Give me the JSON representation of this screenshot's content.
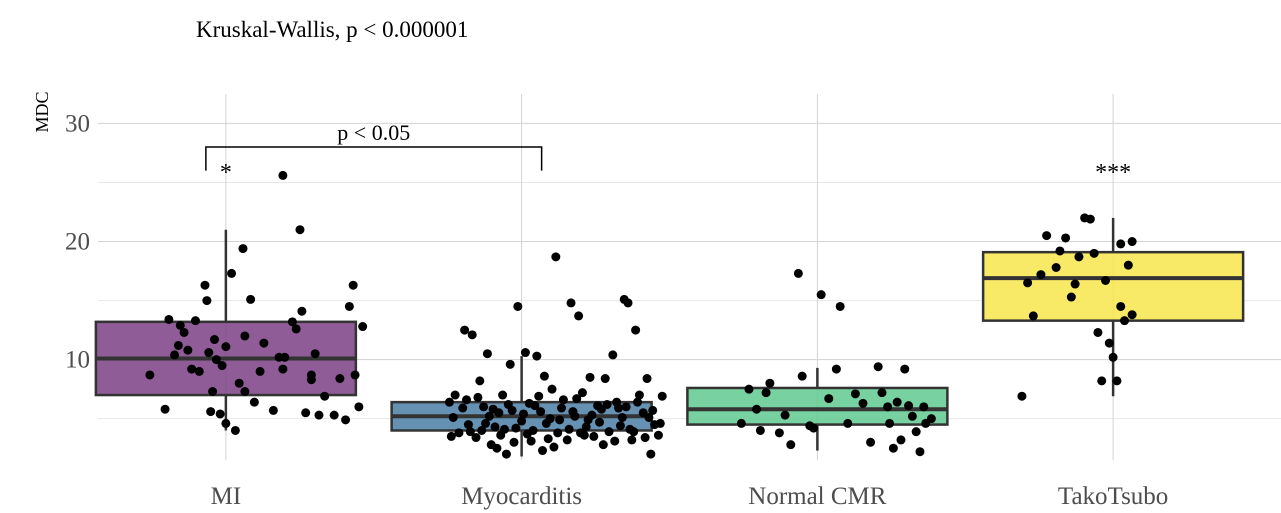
{
  "chart_data": {
    "type": "box",
    "title": "Kruskal-Wallis, p < 0.000001",
    "ylabel": "MDC",
    "xlabel": "",
    "ylim": [
      1.5,
      33
    ],
    "yticks": [
      10,
      20,
      30
    ],
    "grid": true,
    "legend": "none",
    "categories": [
      "MI",
      "Myocarditis",
      "Normal CMR",
      "TakoTsubo"
    ],
    "colors": [
      "#7b3f85",
      "#4a7ea6",
      "#5fc98f",
      "#f7e64b"
    ],
    "boxes": [
      {
        "q1": 7.0,
        "median": 10.1,
        "q3": 13.2,
        "whisker_low": 4.0,
        "whisker_high": 21.0,
        "significance": "*"
      },
      {
        "q1": 4.0,
        "median": 5.2,
        "q3": 6.4,
        "whisker_low": 1.8,
        "whisker_high": 10.3,
        "significance": ""
      },
      {
        "q1": 4.5,
        "median": 5.8,
        "q3": 7.6,
        "whisker_low": 2.3,
        "whisker_high": 9.3,
        "significance": ""
      },
      {
        "q1": 13.3,
        "median": 16.9,
        "q3": 19.1,
        "whisker_low": 6.9,
        "whisker_high": 22.0,
        "significance": "***"
      }
    ],
    "comparison": {
      "from": "MI",
      "to": "Myocarditis",
      "label": "p < 0.05"
    },
    "points": [
      [
        [
          -0.4,
          8.7
        ],
        [
          -0.32,
          5.8
        ],
        [
          -0.27,
          10.4
        ],
        [
          -0.25,
          11.2
        ],
        [
          -0.24,
          12.9
        ],
        [
          -0.2,
          10.8
        ],
        [
          -0.18,
          9.2
        ],
        [
          -0.16,
          13.3
        ],
        [
          -0.14,
          9.0
        ],
        [
          -0.11,
          16.3
        ],
        [
          -0.1,
          15.0
        ],
        [
          -0.09,
          10.6
        ],
        [
          -0.08,
          5.6
        ],
        [
          -0.07,
          7.3
        ],
        [
          -0.06,
          11.7
        ],
        [
          -0.05,
          10.0
        ],
        [
          -0.03,
          5.4
        ],
        [
          -0.02,
          9.5
        ],
        [
          0.0,
          4.6
        ],
        [
          0.03,
          17.3
        ],
        [
          0.05,
          4.0
        ],
        [
          0.07,
          8.0
        ],
        [
          0.09,
          19.4
        ],
        [
          0.1,
          12.0
        ],
        [
          0.1,
          7.3
        ],
        [
          0.13,
          15.1
        ],
        [
          0.15,
          6.4
        ],
        [
          0.18,
          9.0
        ],
        [
          0.2,
          11.4
        ],
        [
          0.25,
          5.7
        ],
        [
          0.28,
          10.2
        ],
        [
          0.31,
          10.2
        ],
        [
          0.35,
          13.2
        ],
        [
          0.37,
          12.6
        ],
        [
          0.39,
          21.0
        ],
        [
          0.4,
          14.1
        ],
        [
          0.42,
          5.5
        ],
        [
          0.45,
          8.7
        ],
        [
          0.47,
          10.5
        ],
        [
          0.49,
          5.3
        ],
        [
          0.52,
          6.9
        ],
        [
          0.57,
          5.3
        ],
        [
          0.6,
          8.4
        ],
        [
          0.63,
          4.9
        ],
        [
          0.65,
          14.5
        ],
        [
          0.67,
          16.3
        ],
        [
          0.68,
          8.7
        ],
        [
          0.7,
          6.0
        ],
        [
          0.72,
          12.8
        ],
        [
          -0.3,
          13.4
        ],
        [
          0.0,
          11.1
        ],
        [
          0.45,
          8.3
        ],
        [
          -0.22,
          12.3
        ],
        [
          0.3,
          9.2
        ],
        [
          0.3,
          25.6
        ]
      ],
      [
        [
          -0.38,
          6.4
        ],
        [
          -0.36,
          5.1
        ],
        [
          -0.33,
          3.8
        ],
        [
          -0.3,
          12.5
        ],
        [
          -0.28,
          4.5
        ],
        [
          -0.26,
          12.1
        ],
        [
          -0.24,
          3.4
        ],
        [
          -0.22,
          8.2
        ],
        [
          -0.2,
          6.0
        ],
        [
          -0.18,
          10.5
        ],
        [
          -0.16,
          2.8
        ],
        [
          -0.14,
          4.3
        ],
        [
          -0.12,
          5.5
        ],
        [
          -0.1,
          7.0
        ],
        [
          -0.08,
          2.0
        ],
        [
          -0.06,
          9.6
        ],
        [
          -0.04,
          3.0
        ],
        [
          -0.02,
          14.5
        ],
        [
          0.0,
          4.8
        ],
        [
          0.02,
          10.6
        ],
        [
          0.04,
          6.3
        ],
        [
          0.06,
          4.0
        ],
        [
          0.08,
          10.3
        ],
        [
          0.1,
          5.6
        ],
        [
          0.12,
          8.6
        ],
        [
          0.14,
          3.3
        ],
        [
          0.16,
          7.5
        ],
        [
          0.18,
          18.7
        ],
        [
          0.2,
          4.9
        ],
        [
          0.22,
          6.6
        ],
        [
          0.24,
          3.2
        ],
        [
          0.26,
          14.8
        ],
        [
          0.28,
          5.2
        ],
        [
          0.3,
          13.7
        ],
        [
          0.32,
          7.2
        ],
        [
          0.34,
          4.3
        ],
        [
          0.36,
          8.5
        ],
        [
          0.38,
          3.5
        ],
        [
          0.4,
          6.1
        ],
        [
          0.42,
          5.8
        ],
        [
          0.44,
          8.4
        ],
        [
          0.46,
          3.9
        ],
        [
          0.48,
          10.4
        ],
        [
          0.5,
          6.4
        ],
        [
          0.52,
          4.4
        ],
        [
          0.54,
          15.1
        ],
        [
          0.56,
          14.8
        ],
        [
          0.58,
          3.2
        ],
        [
          0.6,
          12.5
        ],
        [
          0.62,
          7.0
        ],
        [
          0.64,
          5.5
        ],
        [
          0.66,
          8.4
        ],
        [
          0.68,
          2.0
        ],
        [
          0.7,
          4.5
        ],
        [
          0.72,
          3.6
        ],
        [
          0.74,
          6.9
        ],
        [
          -0.35,
          7.0
        ],
        [
          -0.31,
          5.9
        ],
        [
          -0.27,
          3.9
        ],
        [
          -0.23,
          6.8
        ],
        [
          -0.19,
          4.6
        ],
        [
          -0.15,
          5.8
        ],
        [
          -0.11,
          3.6
        ],
        [
          -0.07,
          6.2
        ],
        [
          -0.03,
          4.2
        ],
        [
          0.01,
          5.4
        ],
        [
          0.05,
          3.1
        ],
        [
          0.09,
          6.9
        ],
        [
          0.13,
          4.6
        ],
        [
          0.17,
          2.6
        ],
        [
          0.21,
          5.9
        ],
        [
          0.25,
          4.1
        ],
        [
          0.29,
          6.7
        ],
        [
          0.33,
          3.6
        ],
        [
          0.37,
          5.3
        ],
        [
          0.41,
          4.7
        ],
        [
          0.45,
          6.2
        ],
        [
          0.49,
          3.1
        ],
        [
          0.53,
          5.1
        ],
        [
          0.57,
          4.1
        ],
        [
          0.61,
          6.4
        ],
        [
          0.65,
          3.4
        ],
        [
          0.69,
          5.7
        ],
        [
          0.73,
          4.6
        ],
        [
          -0.37,
          3.5
        ],
        [
          -0.29,
          6.6
        ],
        [
          -0.21,
          4.0
        ],
        [
          -0.13,
          2.5
        ],
        [
          -0.05,
          5.7
        ],
        [
          0.03,
          3.7
        ],
        [
          0.11,
          2.3
        ],
        [
          0.19,
          3.8
        ],
        [
          0.27,
          5.6
        ],
        [
          0.35,
          4.9
        ],
        [
          0.43,
          2.8
        ],
        [
          0.51,
          5.9
        ],
        [
          0.59,
          3.9
        ],
        [
          0.67,
          5.1
        ],
        [
          -0.17,
          5.2
        ],
        [
          0.07,
          6.1
        ],
        [
          0.31,
          3.8
        ],
        [
          0.55,
          6.0
        ],
        [
          0.15,
          5.0
        ],
        [
          -0.09,
          4.1
        ]
      ],
      [
        [
          -0.4,
          4.6
        ],
        [
          -0.36,
          7.5
        ],
        [
          -0.32,
          5.8
        ],
        [
          -0.3,
          4.0
        ],
        [
          -0.27,
          7.2
        ],
        [
          -0.25,
          8.0
        ],
        [
          -0.2,
          3.8
        ],
        [
          -0.17,
          5.3
        ],
        [
          -0.14,
          2.8
        ],
        [
          -0.1,
          17.3
        ],
        [
          -0.08,
          8.6
        ],
        [
          -0.04,
          4.4
        ],
        [
          -0.02,
          4.2
        ],
        [
          0.02,
          15.5
        ],
        [
          0.06,
          6.7
        ],
        [
          0.1,
          9.2
        ],
        [
          0.12,
          14.5
        ],
        [
          0.16,
          4.6
        ],
        [
          0.2,
          7.1
        ],
        [
          0.24,
          6.3
        ],
        [
          0.28,
          3.0
        ],
        [
          0.32,
          9.4
        ],
        [
          0.34,
          7.2
        ],
        [
          0.37,
          6.0
        ],
        [
          0.38,
          4.6
        ],
        [
          0.4,
          2.5
        ],
        [
          0.42,
          6.4
        ],
        [
          0.44,
          3.2
        ],
        [
          0.46,
          9.2
        ],
        [
          0.48,
          6.1
        ],
        [
          0.5,
          5.2
        ],
        [
          0.52,
          3.9
        ],
        [
          0.54,
          2.2
        ],
        [
          0.56,
          6.0
        ],
        [
          0.57,
          4.6
        ],
        [
          0.6,
          5.0
        ]
      ],
      [
        [
          -0.48,
          6.9
        ],
        [
          -0.45,
          16.5
        ],
        [
          -0.42,
          13.7
        ],
        [
          -0.38,
          17.2
        ],
        [
          -0.35,
          20.5
        ],
        [
          -0.3,
          17.8
        ],
        [
          -0.28,
          19.2
        ],
        [
          -0.25,
          20.3
        ],
        [
          -0.22,
          15.3
        ],
        [
          -0.2,
          16.4
        ],
        [
          -0.18,
          18.7
        ],
        [
          -0.15,
          22.0
        ],
        [
          -0.12,
          21.9
        ],
        [
          -0.1,
          19.0
        ],
        [
          -0.08,
          12.3
        ],
        [
          -0.06,
          8.2
        ],
        [
          -0.04,
          16.7
        ],
        [
          -0.02,
          11.4
        ],
        [
          0.0,
          10.2
        ],
        [
          0.02,
          8.2
        ],
        [
          0.04,
          19.8
        ],
        [
          0.06,
          13.3
        ],
        [
          0.08,
          18.0
        ],
        [
          0.1,
          20.0
        ],
        [
          0.1,
          13.8
        ],
        [
          0.04,
          14.5
        ]
      ]
    ]
  }
}
